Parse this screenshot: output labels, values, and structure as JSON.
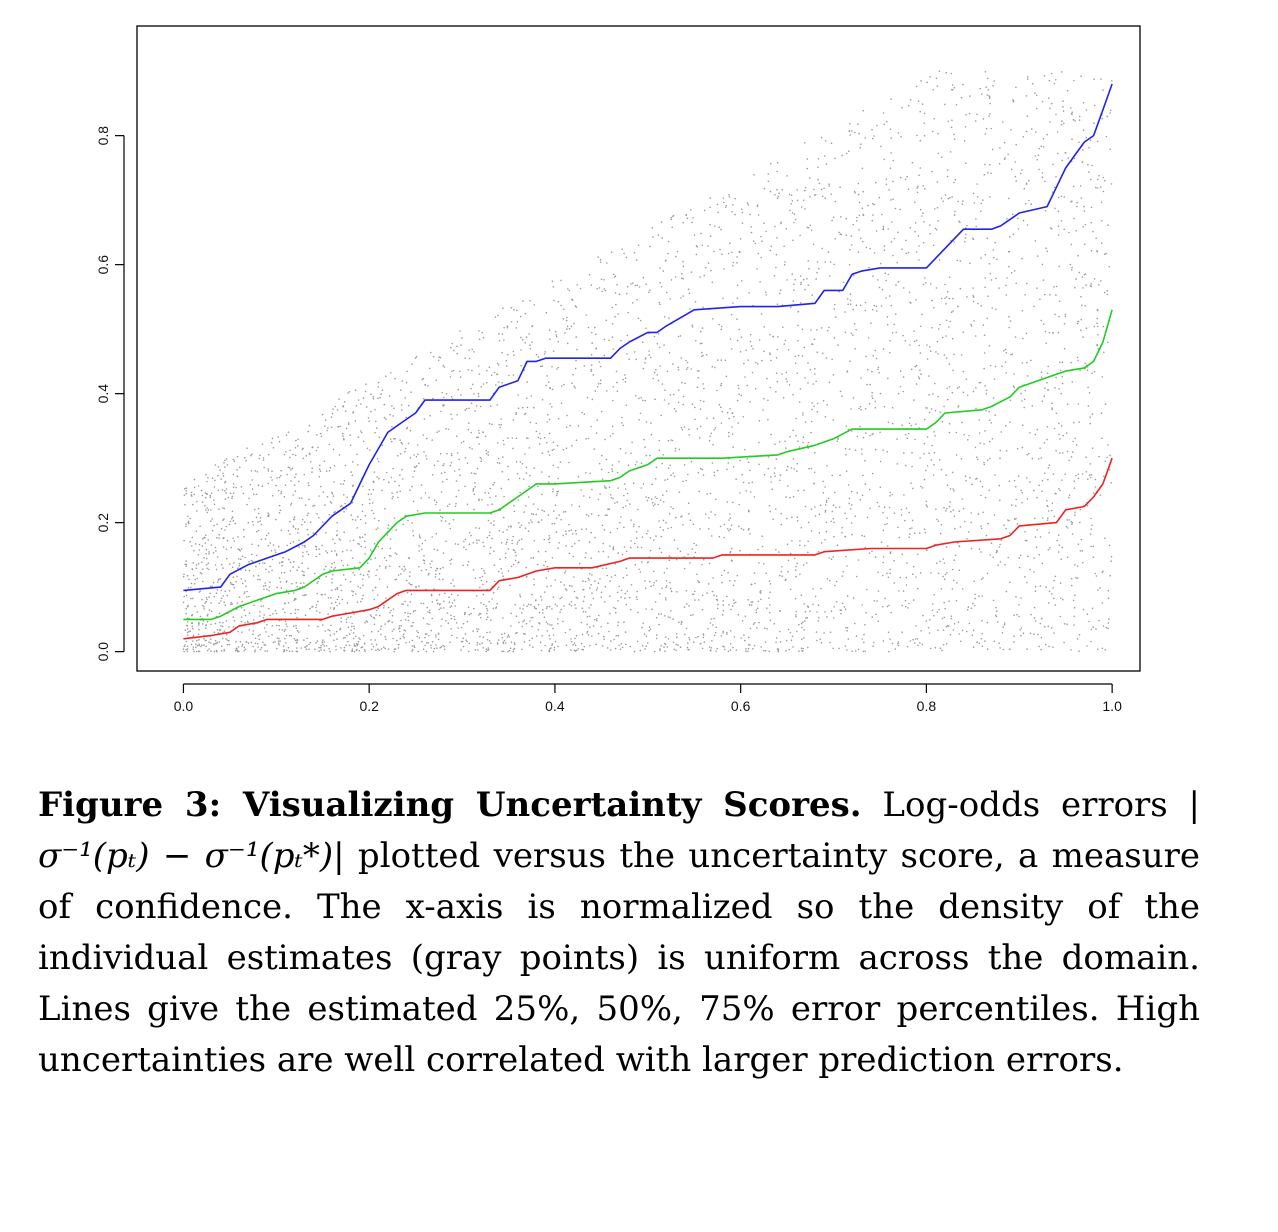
{
  "chart_data": {
    "type": "line",
    "title": "",
    "xlabel": "",
    "ylabel": "",
    "xlim": [
      -0.05,
      1.03
    ],
    "ylim": [
      -0.03,
      0.97
    ],
    "x_ticks": [
      "0.0",
      "0.2",
      "0.4",
      "0.6",
      "0.8",
      "1.0"
    ],
    "y_ticks": [
      "0.0",
      "0.2",
      "0.4",
      "0.6",
      "0.8"
    ],
    "grid": false,
    "legend": "none",
    "background_points": {
      "description_color": "#9a9a9a",
      "count": 5200
    },
    "series": [
      {
        "color": "#2222ee",
        "x": [
          0.0,
          0.04,
          0.05,
          0.07,
          0.08,
          0.1,
          0.11,
          0.13,
          0.14,
          0.16,
          0.18,
          0.19,
          0.2,
          0.22,
          0.23,
          0.24,
          0.25,
          0.26,
          0.27,
          0.33,
          0.34,
          0.36,
          0.37,
          0.38,
          0.39,
          0.43,
          0.46,
          0.47,
          0.48,
          0.5,
          0.51,
          0.52,
          0.55,
          0.6,
          0.64,
          0.68,
          0.69,
          0.71,
          0.72,
          0.73,
          0.75,
          0.8,
          0.81,
          0.84,
          0.87,
          0.88,
          0.9,
          0.93,
          0.94,
          0.95,
          0.96,
          0.97,
          0.98,
          0.99,
          1.0
        ],
        "y": [
          0.095,
          0.1,
          0.12,
          0.135,
          0.14,
          0.15,
          0.155,
          0.17,
          0.18,
          0.21,
          0.23,
          0.26,
          0.29,
          0.34,
          0.35,
          0.36,
          0.37,
          0.39,
          0.39,
          0.39,
          0.41,
          0.42,
          0.45,
          0.45,
          0.455,
          0.455,
          0.455,
          0.47,
          0.48,
          0.495,
          0.495,
          0.505,
          0.53,
          0.535,
          0.535,
          0.54,
          0.56,
          0.56,
          0.585,
          0.59,
          0.595,
          0.595,
          0.61,
          0.655,
          0.655,
          0.66,
          0.68,
          0.69,
          0.72,
          0.75,
          0.77,
          0.79,
          0.8,
          0.84,
          0.88
        ]
      },
      {
        "color": "#22cc22",
        "x": [
          0.0,
          0.03,
          0.04,
          0.06,
          0.08,
          0.1,
          0.12,
          0.13,
          0.15,
          0.16,
          0.19,
          0.2,
          0.21,
          0.23,
          0.24,
          0.26,
          0.33,
          0.34,
          0.36,
          0.37,
          0.38,
          0.4,
          0.46,
          0.47,
          0.48,
          0.5,
          0.51,
          0.58,
          0.64,
          0.65,
          0.68,
          0.7,
          0.72,
          0.74,
          0.8,
          0.81,
          0.82,
          0.86,
          0.87,
          0.89,
          0.9,
          0.91,
          0.94,
          0.95,
          0.97,
          0.98,
          0.99,
          1.0
        ],
        "y": [
          0.05,
          0.05,
          0.055,
          0.07,
          0.08,
          0.09,
          0.095,
          0.1,
          0.12,
          0.125,
          0.13,
          0.145,
          0.17,
          0.2,
          0.21,
          0.215,
          0.215,
          0.22,
          0.24,
          0.25,
          0.26,
          0.26,
          0.265,
          0.27,
          0.28,
          0.29,
          0.3,
          0.3,
          0.305,
          0.31,
          0.32,
          0.33,
          0.345,
          0.345,
          0.345,
          0.355,
          0.37,
          0.375,
          0.38,
          0.395,
          0.41,
          0.415,
          0.43,
          0.435,
          0.44,
          0.45,
          0.48,
          0.53
        ]
      },
      {
        "color": "#ee2222",
        "x": [
          0.0,
          0.03,
          0.05,
          0.06,
          0.08,
          0.09,
          0.15,
          0.16,
          0.18,
          0.2,
          0.21,
          0.23,
          0.24,
          0.33,
          0.34,
          0.36,
          0.38,
          0.4,
          0.44,
          0.47,
          0.48,
          0.57,
          0.58,
          0.68,
          0.69,
          0.74,
          0.8,
          0.81,
          0.83,
          0.88,
          0.89,
          0.9,
          0.94,
          0.95,
          0.97,
          0.98,
          0.99,
          1.0
        ],
        "y": [
          0.02,
          0.025,
          0.03,
          0.04,
          0.045,
          0.05,
          0.05,
          0.055,
          0.06,
          0.065,
          0.07,
          0.09,
          0.095,
          0.095,
          0.11,
          0.115,
          0.125,
          0.13,
          0.13,
          0.14,
          0.145,
          0.145,
          0.15,
          0.15,
          0.155,
          0.16,
          0.16,
          0.165,
          0.17,
          0.175,
          0.18,
          0.195,
          0.2,
          0.22,
          0.225,
          0.24,
          0.26,
          0.3
        ]
      }
    ]
  },
  "caption": {
    "lead": "Figure 3: Visualizing Uncertainty Scores.",
    "part1": " Log-odds errors ",
    "math": "|σ⁻¹(pₜ) − σ⁻¹(pₜ*)|",
    "part2": " plotted versus the uncertainty score, a measure of confidence.  The x-axis is normalized so the density of the individual estimates (gray points) is uniform across the domain. Lines give the estimated 25%, 50%, 75% error percentiles. High uncertainties are well correlated with larger prediction errors."
  }
}
